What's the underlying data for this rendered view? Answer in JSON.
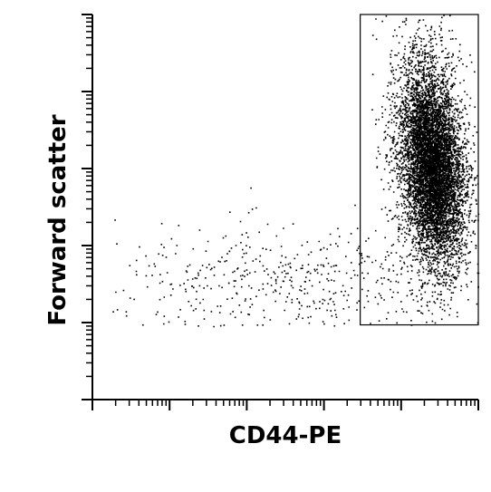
{
  "chart_data": {
    "type": "scatter",
    "title": "",
    "xlabel": "CD44-PE",
    "ylabel": "Forward scatter",
    "x_scale": "log",
    "y_scale": "log",
    "x_decades": 5,
    "y_decades": 5,
    "xlim": [
      0,
      5
    ],
    "ylim": [
      0,
      5
    ],
    "tick_labels_shown": false,
    "grid": false,
    "legend": "none",
    "point_color": "#000000",
    "gate": {
      "shape": "rectangle",
      "x_range": [
        3.47,
        5.0
      ],
      "y_range": [
        0.97,
        5.0
      ]
    },
    "populations": [
      {
        "name": "",
        "count": 6500,
        "center": [
          4.4,
          3.0
        ],
        "spread": [
          0.19,
          0.62
        ],
        "rotation_deg": 6
      },
      {
        "name": "",
        "count": 1200,
        "center": [
          4.35,
          3.3
        ],
        "spread": [
          0.28,
          0.9
        ],
        "rotation_deg": 0
      },
      {
        "name": "",
        "count": 500,
        "center": [
          2.5,
          1.5
        ],
        "spread": [
          1.1,
          0.38
        ],
        "rotation_deg": 0
      }
    ]
  }
}
